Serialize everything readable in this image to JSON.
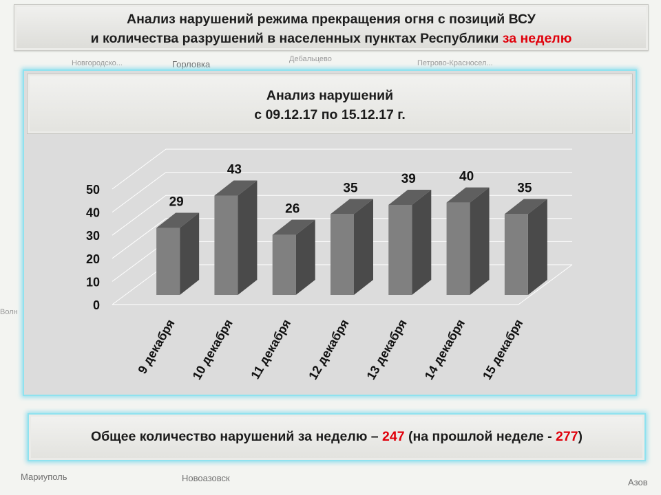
{
  "header": {
    "line1": "Анализ нарушений режима прекращения огня с позиций ВСУ",
    "line2_prefix": "и количества разрушений в населенных пунктах Республики ",
    "line2_highlight": "за неделю"
  },
  "map_labels": {
    "novgorodskoe": "Новгородско...",
    "gorlovka": "Горловка",
    "debaltsevo": "Дебальцево",
    "petrovo": "Петрово-Красносел...",
    "mariupol": "Мариуполь",
    "novoazovsk": "Новоазовск",
    "azov": "Азов",
    "volnovakha": "Волн"
  },
  "chart_panel": {
    "title_line1": "Анализ нарушений",
    "title_line2": "с 09.12.17 по 15.12.17 г."
  },
  "chart_data": {
    "type": "bar",
    "categories": [
      "9 декабря",
      "10 декабря",
      "11 декабря",
      "12 декабря",
      "13 декабря",
      "14 декабря",
      "15 декабря"
    ],
    "values": [
      29,
      43,
      26,
      35,
      39,
      40,
      35
    ],
    "title": "Анализ нарушений",
    "subtitle": "с 09.12.17 по 15.12.17 г.",
    "ylim": [
      0,
      50
    ],
    "yticks": [
      0,
      10,
      20,
      30,
      40,
      50
    ],
    "grid": true,
    "three_d": true,
    "bar_color": "#808080",
    "bar_side_color": "#4a4a4a",
    "bar_top_color": "#5f5f5f"
  },
  "summary": {
    "prefix": "Общее количество нарушений за неделю – ",
    "total": "247",
    "middle": " (на прошлой неделе - ",
    "previous": "277",
    "suffix": ")"
  },
  "colors": {
    "highlight": "#e0000b",
    "glow": "#8fe2ef"
  }
}
